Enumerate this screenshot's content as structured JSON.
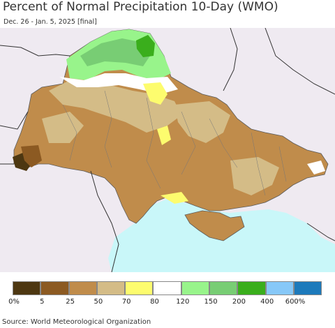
{
  "title": "Percent of Normal Precipitation 10-Day (WMO)",
  "subtitle": "Dec. 26 - Jan. 5, 2025 [final]",
  "source": "Source: World Meteorological Organization",
  "legend": {
    "colors": [
      "#4d3711",
      "#8c5a22",
      "#c08c4b",
      "#d4bc87",
      "#fdfc6e",
      "#ffffff",
      "#98f48b",
      "#78cd74",
      "#3aae1c",
      "#87c8f8",
      "#1d7abb"
    ],
    "labels": [
      "0%",
      "5",
      "25",
      "50",
      "70",
      "80",
      "120",
      "150",
      "200",
      "400",
      "600%"
    ]
  },
  "map_colors": {
    "background": "#efeaf1",
    "sea": "#c9f7f9",
    "dominant": "#c08c4b",
    "light_dry": "#d4bc87",
    "wet": "#78cd74",
    "very_wet": "#3aae1c",
    "near_normal": "#ffffff",
    "low": "#fdfc6e"
  }
}
